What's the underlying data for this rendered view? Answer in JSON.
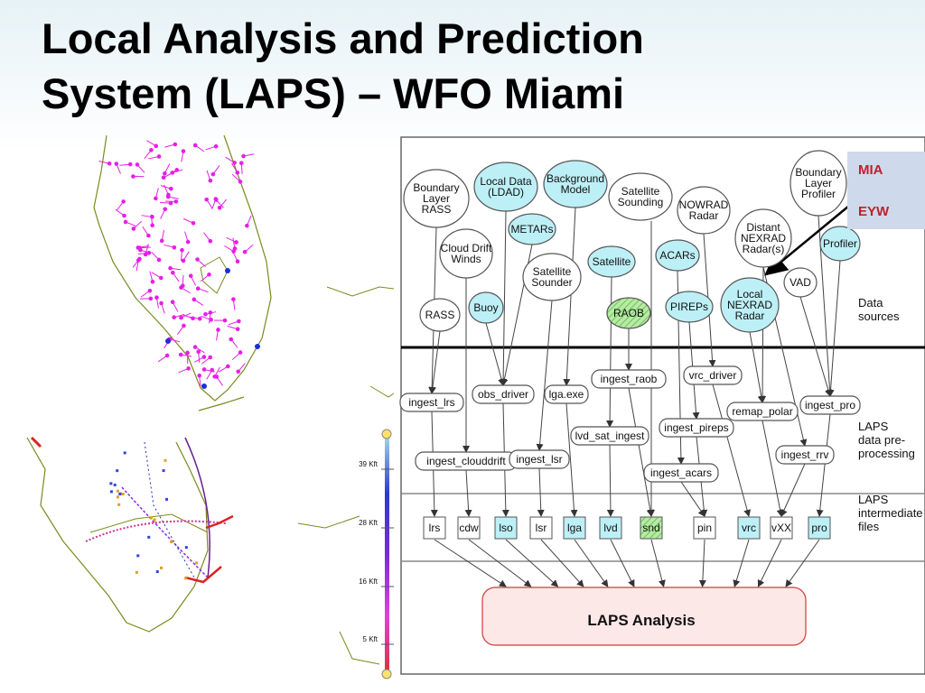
{
  "title": {
    "line1": "Local Analysis and Prediction",
    "line2": "System (LAPS) – WFO Miami"
  },
  "legend": {
    "mia": "MIA",
    "eyw": "EYW"
  },
  "altitude_scale": [
    "39 Kft",
    "28 Kft",
    "16 Kft",
    "5 Kft"
  ],
  "colors": {
    "cyan_node": "#bdeff6",
    "green_node": "#9fe08c",
    "analysis_fill": "#fde8e8",
    "analysis_border": "#d43a3a",
    "station_dot": "#e81ee8",
    "coast": "#7c8a20",
    "legend_bg": "#cfd9ec"
  },
  "diagram": {
    "sources": [
      {
        "id": "blr",
        "lines": [
          "Boundary",
          "Layer",
          "RASS"
        ],
        "style": "white"
      },
      {
        "id": "ldad",
        "lines": [
          "Local Data",
          "(LDAD)"
        ],
        "style": "cyan"
      },
      {
        "id": "bg",
        "lines": [
          "Background",
          "Model"
        ],
        "style": "cyan"
      },
      {
        "id": "ss",
        "lines": [
          "Satellite",
          "Sounding"
        ],
        "style": "white"
      },
      {
        "id": "nowrad",
        "lines": [
          "NOWRAD",
          "Radar"
        ],
        "style": "white"
      },
      {
        "id": "blp",
        "lines": [
          "Boundary",
          "Layer",
          "Profiler"
        ],
        "style": "white"
      },
      {
        "id": "metars",
        "lines": [
          "METARs"
        ],
        "style": "cyan"
      },
      {
        "id": "cdw",
        "lines": [
          "Cloud Drift",
          "Winds"
        ],
        "style": "white"
      },
      {
        "id": "dnex",
        "lines": [
          "Distant",
          "NEXRAD",
          "Radar(s)"
        ],
        "style": "white"
      },
      {
        "id": "prof",
        "lines": [
          "Profiler"
        ],
        "style": "cyan"
      },
      {
        "id": "sat",
        "lines": [
          "Satellite"
        ],
        "style": "cyan"
      },
      {
        "id": "acars",
        "lines": [
          "ACARs"
        ],
        "style": "cyan"
      },
      {
        "id": "sats",
        "lines": [
          "Satellite",
          "Sounder"
        ],
        "style": "white"
      },
      {
        "id": "vad",
        "lines": [
          "VAD"
        ],
        "style": "white"
      },
      {
        "id": "lnex",
        "lines": [
          "Local",
          "NEXRAD",
          "Radar"
        ],
        "style": "cyan"
      },
      {
        "id": "rass",
        "lines": [
          "RASS"
        ],
        "style": "white"
      },
      {
        "id": "buoy",
        "lines": [
          "Buoy"
        ],
        "style": "cyan"
      },
      {
        "id": "raob",
        "lines": [
          "RAOB"
        ],
        "style": "green"
      },
      {
        "id": "pireps",
        "lines": [
          "PIREPs"
        ],
        "style": "cyan"
      }
    ],
    "processes": [
      {
        "id": "ingest_lrs",
        "label": "ingest_lrs"
      },
      {
        "id": "obs_driver",
        "label": "obs_driver"
      },
      {
        "id": "lga_exe",
        "label": "lga.exe"
      },
      {
        "id": "ingest_raob",
        "label": "ingest_raob"
      },
      {
        "id": "vrc_driver",
        "label": "vrc_driver"
      },
      {
        "id": "remap_polar",
        "label": "remap_polar"
      },
      {
        "id": "ingest_pro",
        "label": "ingest_pro"
      },
      {
        "id": "lvd_sat_ingest",
        "label": "lvd_sat_ingest"
      },
      {
        "id": "ingest_pireps",
        "label": "ingest_pireps"
      },
      {
        "id": "ingest_clouddrift",
        "label": "ingest_clouddrift"
      },
      {
        "id": "ingest_lsr",
        "label": "ingest_lsr"
      },
      {
        "id": "ingest_acars",
        "label": "ingest_acars"
      },
      {
        "id": "ingest_rrv",
        "label": "ingest_rrv"
      }
    ],
    "files": [
      {
        "id": "lrs",
        "label": "lrs",
        "style": "white"
      },
      {
        "id": "cdw_f",
        "label": "cdw",
        "style": "white"
      },
      {
        "id": "lso",
        "label": "lso",
        "style": "cyan"
      },
      {
        "id": "lsr",
        "label": "lsr",
        "style": "white"
      },
      {
        "id": "lga",
        "label": "lga",
        "style": "cyan"
      },
      {
        "id": "lvd",
        "label": "lvd",
        "style": "cyan"
      },
      {
        "id": "snd",
        "label": "snd",
        "style": "green"
      },
      {
        "id": "pin",
        "label": "pin",
        "style": "white"
      },
      {
        "id": "vrc",
        "label": "vrc",
        "style": "cyan"
      },
      {
        "id": "vxx",
        "label": "vXX",
        "style": "white"
      },
      {
        "id": "pro",
        "label": "pro",
        "style": "cyan"
      }
    ],
    "analysis": "LAPS Analysis",
    "sections": [
      {
        "lines": [
          "Data",
          "sources"
        ]
      },
      {
        "lines": [
          "LAPS",
          "data pre-",
          "processing"
        ]
      },
      {
        "lines": [
          "LAPS",
          "intermediate",
          "files"
        ]
      }
    ]
  }
}
